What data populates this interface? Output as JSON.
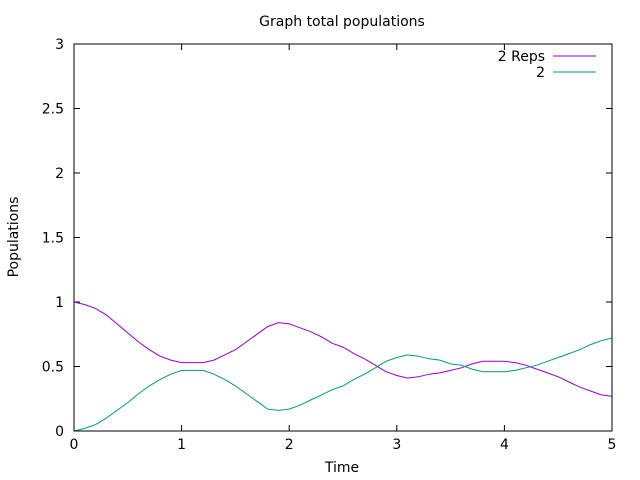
{
  "chart_data": {
    "type": "line",
    "title": "Graph total populations",
    "xlabel": "Time",
    "ylabel": "Populations",
    "xlim": [
      0,
      5
    ],
    "ylim": [
      0,
      3
    ],
    "xticks": [
      "0",
      "1",
      "2",
      "3",
      "4",
      "5"
    ],
    "yticks": [
      "0",
      "0.5",
      "1",
      "1.5",
      "2",
      "2.5",
      "3"
    ],
    "grid": false,
    "legend_position": "top-right",
    "series": [
      {
        "name": "2 Reps",
        "color": "#9400d3",
        "x": [
          0,
          0.1,
          0.2,
          0.3,
          0.4,
          0.5,
          0.6,
          0.7,
          0.8,
          0.9,
          1.0,
          1.1,
          1.2,
          1.3,
          1.4,
          1.5,
          1.6,
          1.7,
          1.8,
          1.9,
          2.0,
          2.1,
          2.2,
          2.3,
          2.4,
          2.5,
          2.6,
          2.7,
          2.8,
          2.9,
          3.0,
          3.1,
          3.2,
          3.3,
          3.4,
          3.5,
          3.6,
          3.7,
          3.8,
          3.9,
          4.0,
          4.1,
          4.2,
          4.3,
          4.4,
          4.5,
          4.6,
          4.7,
          4.8,
          4.9,
          5.0
        ],
        "y": [
          1.0,
          0.98,
          0.95,
          0.9,
          0.83,
          0.76,
          0.69,
          0.63,
          0.58,
          0.55,
          0.53,
          0.53,
          0.53,
          0.55,
          0.59,
          0.63,
          0.69,
          0.75,
          0.81,
          0.84,
          0.83,
          0.8,
          0.77,
          0.73,
          0.68,
          0.65,
          0.6,
          0.56,
          0.51,
          0.46,
          0.43,
          0.41,
          0.42,
          0.44,
          0.45,
          0.47,
          0.49,
          0.52,
          0.54,
          0.54,
          0.54,
          0.53,
          0.51,
          0.48,
          0.45,
          0.42,
          0.38,
          0.34,
          0.31,
          0.28,
          0.27
        ]
      },
      {
        "name": "2",
        "color": "#009e73",
        "x": [
          0,
          0.1,
          0.2,
          0.3,
          0.4,
          0.5,
          0.6,
          0.7,
          0.8,
          0.9,
          1.0,
          1.1,
          1.2,
          1.3,
          1.4,
          1.5,
          1.6,
          1.7,
          1.8,
          1.9,
          2.0,
          2.1,
          2.2,
          2.3,
          2.4,
          2.5,
          2.6,
          2.7,
          2.8,
          2.9,
          3.0,
          3.1,
          3.2,
          3.3,
          3.4,
          3.5,
          3.6,
          3.7,
          3.8,
          3.9,
          4.0,
          4.1,
          4.2,
          4.3,
          4.4,
          4.5,
          4.6,
          4.7,
          4.8,
          4.9,
          5.0
        ],
        "y": [
          0.0,
          0.02,
          0.05,
          0.1,
          0.16,
          0.22,
          0.29,
          0.35,
          0.4,
          0.44,
          0.47,
          0.47,
          0.47,
          0.44,
          0.4,
          0.35,
          0.29,
          0.23,
          0.17,
          0.16,
          0.17,
          0.2,
          0.24,
          0.28,
          0.32,
          0.35,
          0.4,
          0.44,
          0.49,
          0.54,
          0.57,
          0.59,
          0.58,
          0.56,
          0.55,
          0.52,
          0.51,
          0.48,
          0.46,
          0.46,
          0.46,
          0.47,
          0.49,
          0.51,
          0.54,
          0.57,
          0.6,
          0.63,
          0.67,
          0.7,
          0.72
        ]
      }
    ]
  }
}
